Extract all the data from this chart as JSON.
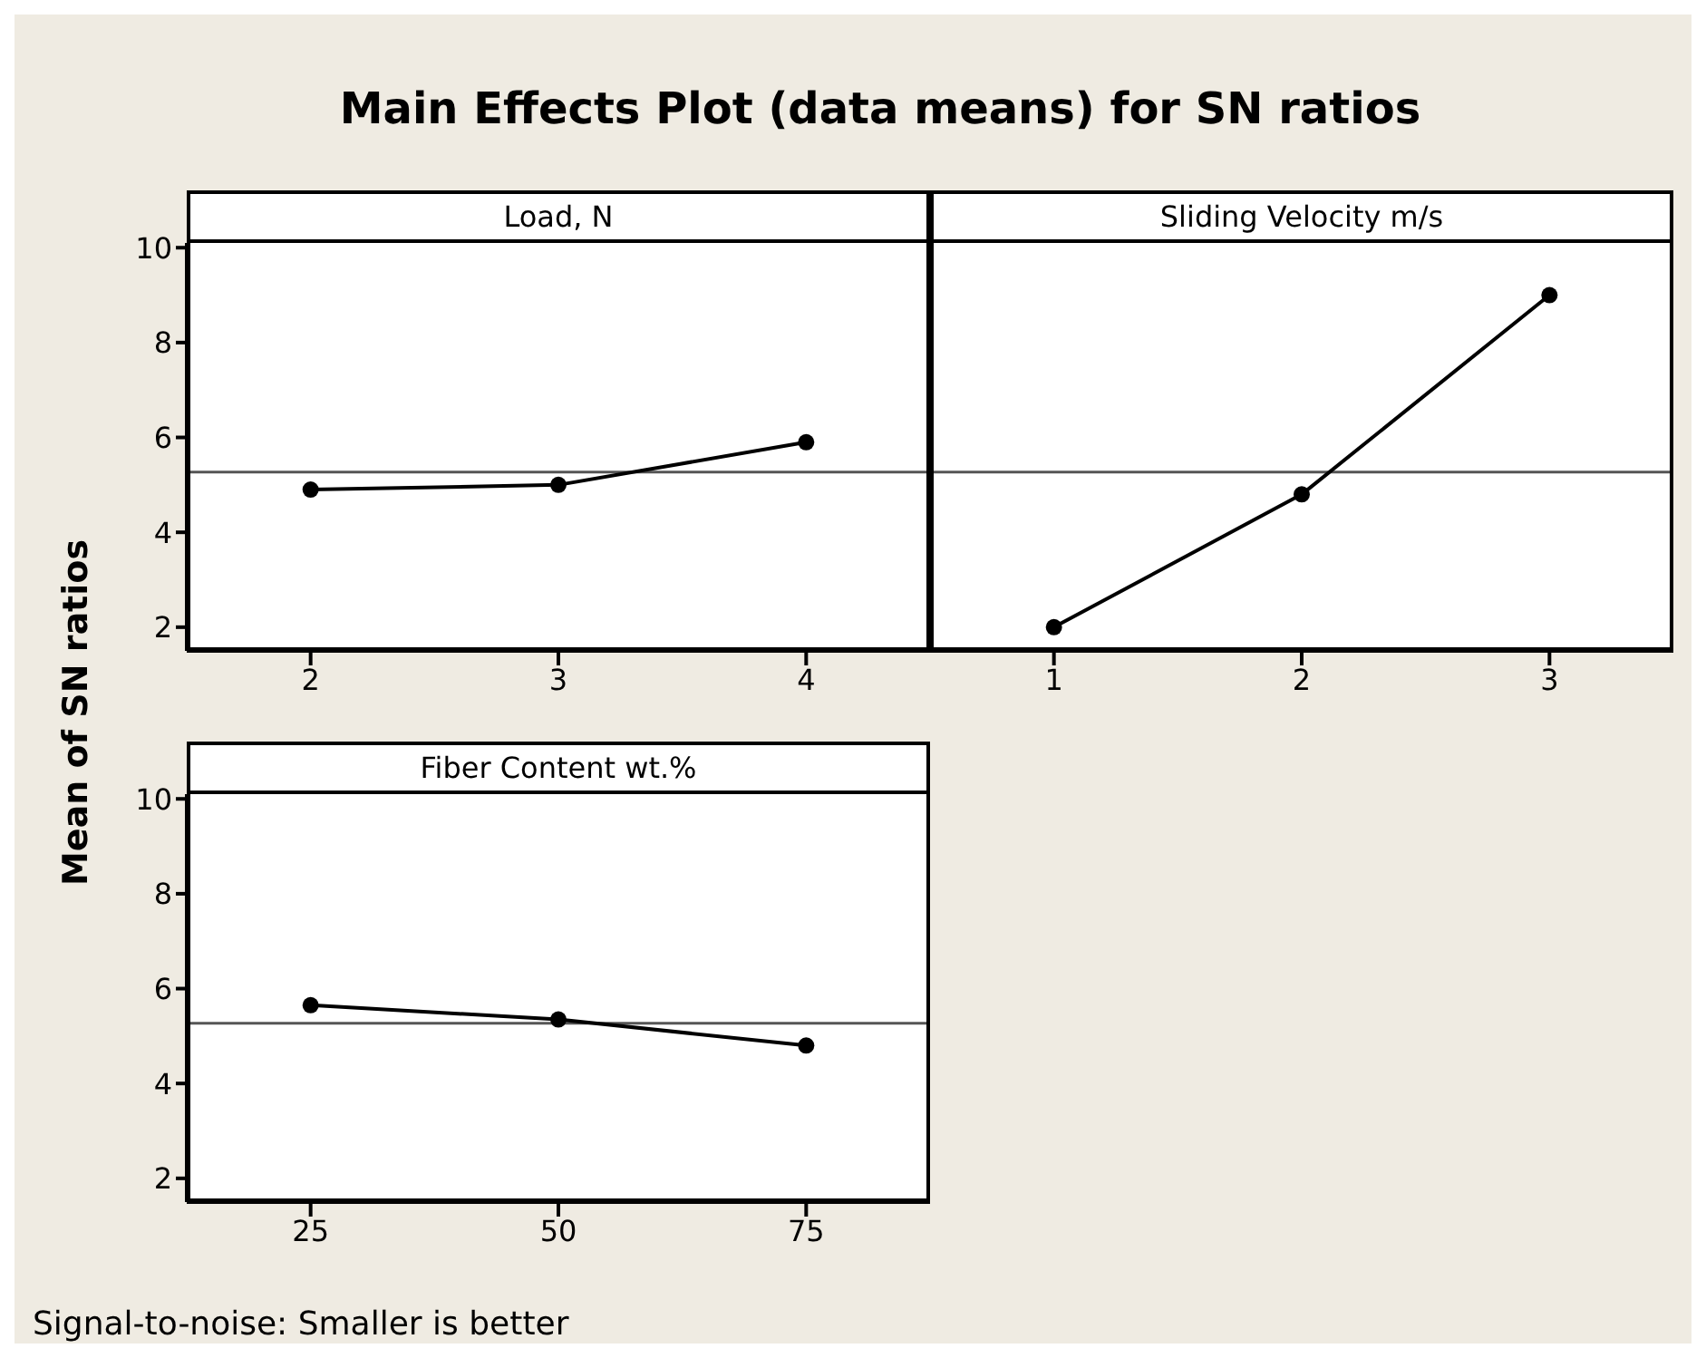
{
  "chart_data": [
    {
      "type": "line",
      "title": "Main Effects Plot (data means) for SN ratios",
      "ylabel": "Mean of SN ratios",
      "xlabel": "Load, N",
      "annotations": [
        "Signal-to-noise: Smaller is better"
      ],
      "x": [
        2,
        3,
        4
      ],
      "series": [
        {
          "color": "#000000",
          "values": [
            4.9,
            5.0,
            5.9
          ]
        }
      ],
      "xlim": [
        1.5,
        4.5
      ],
      "xticks": [
        2,
        3,
        4
      ],
      "ylim": [
        1.5,
        10.1
      ],
      "yticks": [
        2,
        4,
        6,
        8,
        10
      ],
      "ref_lines": [
        {
          "axis": "y",
          "value": 5.27,
          "color": "#555555"
        }
      ],
      "marker": "circle"
    },
    {
      "type": "line",
      "xlabel": "Sliding Velocity m/s",
      "x": [
        1,
        2,
        3
      ],
      "series": [
        {
          "color": "#000000",
          "values": [
            2.0,
            4.8,
            9.0
          ]
        }
      ],
      "xlim": [
        0.5,
        3.5
      ],
      "xticks": [
        1,
        2,
        3
      ],
      "ylim": [
        1.5,
        10.1
      ],
      "yticks": [
        2,
        4,
        6,
        8,
        10
      ],
      "ref_lines": [
        {
          "axis": "y",
          "value": 5.27,
          "color": "#555555"
        }
      ],
      "marker": "circle",
      "tick_labels": "x"
    },
    {
      "type": "line",
      "xlabel": "Fiber Content wt.%",
      "x": [
        25,
        50,
        75
      ],
      "series": [
        {
          "color": "#000000",
          "values": [
            5.65,
            5.35,
            4.8
          ]
        }
      ],
      "xlim": [
        12.5,
        87.5
      ],
      "xticks": [
        25,
        50,
        75
      ],
      "ylim": [
        1.5,
        10.1
      ],
      "yticks": [
        2,
        4,
        6,
        8,
        10
      ],
      "ref_lines": [
        {
          "axis": "y",
          "value": 5.27,
          "color": "#555555"
        }
      ],
      "marker": "circle"
    }
  ]
}
